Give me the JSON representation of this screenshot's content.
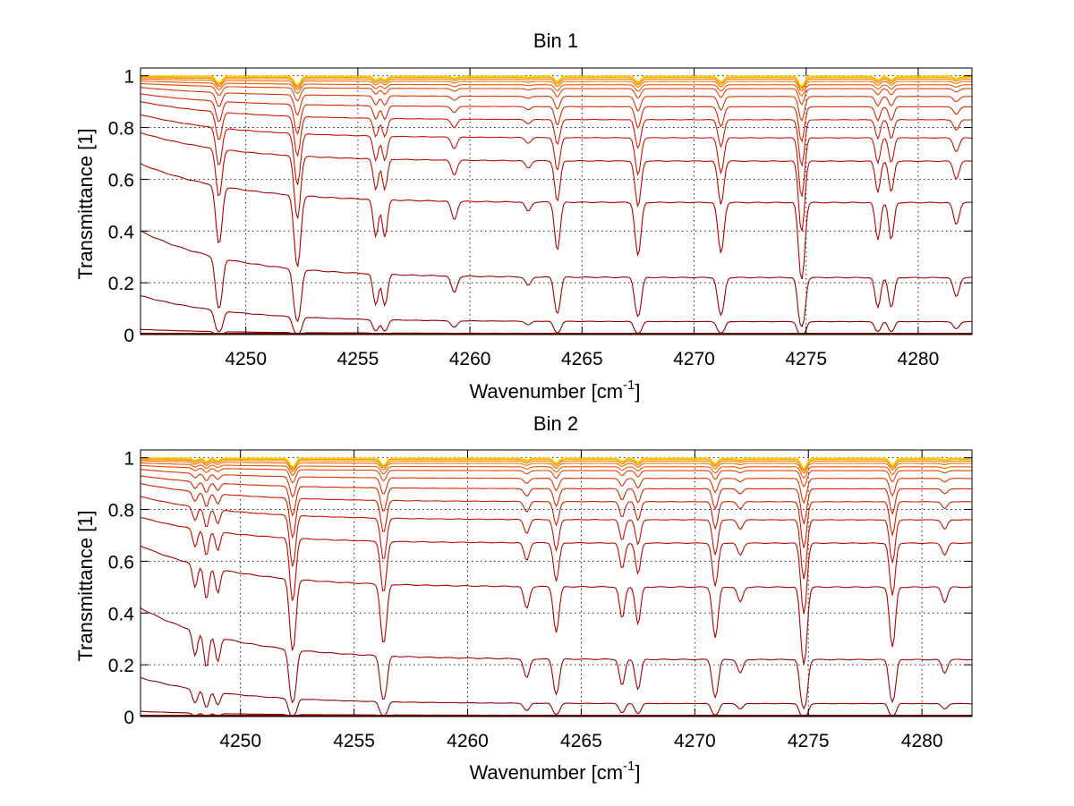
{
  "chart_data": [
    {
      "type": "line",
      "title": "Bin 1",
      "xlabel": "Wavenumber [cm",
      "xlabel_superscript": "-1",
      "xlabel_suffix": "]",
      "ylabel": "Transmittance [1]",
      "xlim": [
        4245.3,
        4282.4
      ],
      "ylim": [
        0,
        1.03
      ],
      "xticks": [
        4250,
        4255,
        4260,
        4265,
        4270,
        4275,
        4280
      ],
      "xtick_labels": [
        "4250",
        "4255",
        "4260",
        "4265",
        "4270",
        "4275",
        "4280"
      ],
      "yticks": [
        0,
        0.2,
        0.4,
        0.6,
        0.8,
        1
      ],
      "ytick_labels": [
        "0",
        "0.2",
        "0.4",
        "0.6",
        "0.8",
        "1"
      ],
      "grid": true,
      "series_count_note": "many transmittance spectra, colors from dark red (lowest) to yellow/green (near 1)",
      "lines": [
        {
          "center": 4248.8,
          "depth": 1.0,
          "width": 0.18
        },
        {
          "center": 4252.3,
          "depth": 1.3,
          "width": 0.18
        },
        {
          "center": 4255.8,
          "depth": 0.55,
          "width": 0.15
        },
        {
          "center": 4256.2,
          "depth": 0.55,
          "width": 0.15
        },
        {
          "center": 4259.3,
          "depth": 0.25,
          "width": 0.17
        },
        {
          "center": 4262.6,
          "depth": 0.12,
          "width": 0.17
        },
        {
          "center": 4263.9,
          "depth": 0.75,
          "width": 0.16
        },
        {
          "center": 4267.5,
          "depth": 0.85,
          "width": 0.17
        },
        {
          "center": 4271.2,
          "depth": 0.8,
          "width": 0.17
        },
        {
          "center": 4274.8,
          "depth": 1.45,
          "width": 0.17
        },
        {
          "center": 4278.2,
          "depth": 0.55,
          "width": 0.15
        },
        {
          "center": 4278.8,
          "depth": 0.55,
          "width": 0.15
        },
        {
          "center": 4281.7,
          "depth": 0.3,
          "width": 0.17
        }
      ],
      "series_baselines": [
        {
          "start": 0.02,
          "end": 0.005,
          "color": "#7f0000"
        },
        {
          "start": 0.15,
          "end": 0.05,
          "color": "#900000"
        },
        {
          "start": 0.4,
          "end": 0.22,
          "color": "#a00000"
        },
        {
          "start": 0.66,
          "end": 0.51,
          "color": "#b00000"
        },
        {
          "start": 0.78,
          "end": 0.67,
          "color": "#bb0a00"
        },
        {
          "start": 0.85,
          "end": 0.76,
          "color": "#c41400"
        },
        {
          "start": 0.9,
          "end": 0.83,
          "color": "#cc1e00"
        },
        {
          "start": 0.93,
          "end": 0.88,
          "color": "#d42800"
        },
        {
          "start": 0.955,
          "end": 0.92,
          "color": "#dc3400"
        },
        {
          "start": 0.97,
          "end": 0.95,
          "color": "#e44400"
        },
        {
          "start": 0.98,
          "end": 0.965,
          "color": "#ec5800"
        },
        {
          "start": 0.988,
          "end": 0.978,
          "color": "#f26c00"
        },
        {
          "start": 0.993,
          "end": 0.987,
          "color": "#f88400"
        },
        {
          "start": 0.997,
          "end": 0.993,
          "color": "#fca000"
        },
        {
          "start": 0.999,
          "end": 0.997,
          "color": "#ffbe00"
        },
        {
          "start": 1.0,
          "end": 0.999,
          "color": "#ffdc00"
        }
      ]
    },
    {
      "type": "line",
      "title": "Bin 2",
      "xlabel": "Wavenumber [cm",
      "xlabel_superscript": "-1",
      "xlabel_suffix": "]",
      "ylabel": "Transmittance [1]",
      "xlim": [
        4245.6,
        4282.2
      ],
      "ylim": [
        0,
        1.03
      ],
      "xticks": [
        4250,
        4255,
        4260,
        4265,
        4270,
        4275,
        4280
      ],
      "xtick_labels": [
        "4250",
        "4255",
        "4260",
        "4265",
        "4270",
        "4275",
        "4280"
      ],
      "yticks": [
        0,
        0.2,
        0.4,
        0.6,
        0.8,
        1
      ],
      "ytick_labels": [
        "0",
        "0.2",
        "0.4",
        "0.6",
        "0.8",
        "1"
      ],
      "grid": true,
      "series_count_note": "many transmittance spectra, colors from dark red (lowest) to yellow/green (near 1)",
      "lines": [
        {
          "center": 4248.0,
          "depth": 0.35,
          "width": 0.14
        },
        {
          "center": 4248.5,
          "depth": 0.5,
          "width": 0.14
        },
        {
          "center": 4249.0,
          "depth": 0.35,
          "width": 0.14
        },
        {
          "center": 4252.3,
          "depth": 1.3,
          "width": 0.17
        },
        {
          "center": 4256.3,
          "depth": 1.0,
          "width": 0.17
        },
        {
          "center": 4262.6,
          "depth": 0.3,
          "width": 0.16
        },
        {
          "center": 4263.9,
          "depth": 0.7,
          "width": 0.16
        },
        {
          "center": 4266.8,
          "depth": 0.45,
          "width": 0.15
        },
        {
          "center": 4267.5,
          "depth": 0.55,
          "width": 0.15
        },
        {
          "center": 4270.9,
          "depth": 0.8,
          "width": 0.16
        },
        {
          "center": 4272.0,
          "depth": 0.2,
          "width": 0.16
        },
        {
          "center": 4274.8,
          "depth": 1.45,
          "width": 0.17
        },
        {
          "center": 4278.7,
          "depth": 1.0,
          "width": 0.16
        },
        {
          "center": 4281.0,
          "depth": 0.2,
          "width": 0.16
        }
      ],
      "series_baselines": [
        {
          "start": 0.02,
          "end": 0.005,
          "color": "#7f0000"
        },
        {
          "start": 0.15,
          "end": 0.05,
          "color": "#900000"
        },
        {
          "start": 0.42,
          "end": 0.22,
          "color": "#a00000"
        },
        {
          "start": 0.66,
          "end": 0.5,
          "color": "#b00000"
        },
        {
          "start": 0.77,
          "end": 0.67,
          "color": "#bb0a00"
        },
        {
          "start": 0.85,
          "end": 0.76,
          "color": "#c41400"
        },
        {
          "start": 0.9,
          "end": 0.83,
          "color": "#cc1e00"
        },
        {
          "start": 0.93,
          "end": 0.88,
          "color": "#d42800"
        },
        {
          "start": 0.955,
          "end": 0.92,
          "color": "#dc3400"
        },
        {
          "start": 0.97,
          "end": 0.95,
          "color": "#e44400"
        },
        {
          "start": 0.98,
          "end": 0.965,
          "color": "#ec5800"
        },
        {
          "start": 0.988,
          "end": 0.978,
          "color": "#f26c00"
        },
        {
          "start": 0.993,
          "end": 0.987,
          "color": "#f88400"
        },
        {
          "start": 0.997,
          "end": 0.993,
          "color": "#fca000"
        },
        {
          "start": 0.999,
          "end": 0.997,
          "color": "#ffbe00"
        },
        {
          "start": 1.0,
          "end": 0.999,
          "color": "#ffdc00"
        }
      ]
    }
  ]
}
